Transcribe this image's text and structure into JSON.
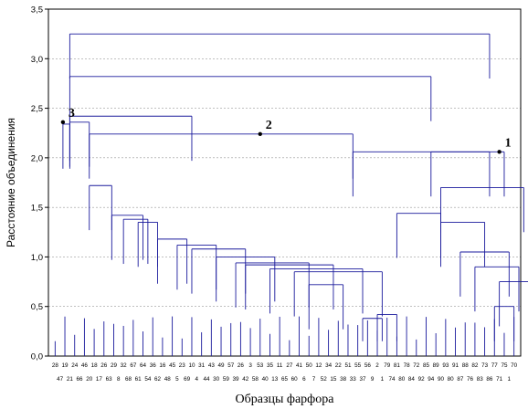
{
  "chart_data": {
    "type": "dendrogram",
    "xlabel": "Образцы фарфора",
    "ylabel": "Расстояние объединения",
    "ylim": [
      0,
      3.5
    ],
    "yticks": [
      "0,0",
      "0,5",
      "1,0",
      "1,5",
      "2,0",
      "2,5",
      "3,0",
      "3,5"
    ],
    "grid": "horizontal dashed",
    "leaf_labels_top": [
      "28",
      "19",
      "24",
      "46",
      "18",
      "26",
      "29",
      "32",
      "67",
      "64",
      "36",
      "16",
      "45",
      "23",
      "10",
      "31",
      "43",
      "49",
      "57",
      "26",
      "3",
      "53",
      "35",
      "11",
      "27",
      "41",
      "50",
      "12",
      "34",
      "22",
      "51",
      "55",
      "56",
      "2",
      "79",
      "81",
      "78",
      "72",
      "85",
      "89",
      "93",
      "91",
      "88",
      "82",
      "73",
      "77",
      "75",
      "70"
    ],
    "leaf_labels_bottom": [
      "47",
      "21",
      "66",
      "20",
      "17",
      "63",
      "8",
      "68",
      "61",
      "54",
      "62",
      "48",
      "5",
      "69",
      "4",
      "44",
      "30",
      "59",
      "39",
      "42",
      "58",
      "40",
      "13",
      "65",
      "60",
      "6",
      "7",
      "52",
      "15",
      "38",
      "33",
      "37",
      "9",
      "1",
      "74",
      "80",
      "84",
      "92",
      "94",
      "90",
      "80",
      "87",
      "76",
      "83",
      "86",
      "71",
      "1"
    ],
    "annotations": [
      {
        "label": "1",
        "height": 2.06
      },
      {
        "label": "2",
        "height": 2.24
      },
      {
        "label": "3",
        "height": 2.36
      }
    ],
    "merges": [
      {
        "x1": 1.5,
        "x2": 44.5,
        "height": 3.25
      },
      {
        "x1": 1.5,
        "x2": 38.5,
        "height": 2.82
      },
      {
        "x1": 1.5,
        "x2": 14.0,
        "height": 2.42
      },
      {
        "x1": 1.5,
        "x2": 3.5,
        "height": 2.36
      },
      {
        "x1": 0.8,
        "x2": 1.5,
        "height": 2.34
      },
      {
        "x1": 3.5,
        "x2": 30.5,
        "height": 2.24
      },
      {
        "x1": 30.5,
        "x2": 46.0,
        "height": 2.06
      },
      {
        "x1": 38.5,
        "x2": 44.5,
        "height": 2.06
      },
      {
        "x1": 39.5,
        "x2": 48.0,
        "height": 1.7
      },
      {
        "x1": 3.5,
        "x2": 5.8,
        "height": 1.72
      },
      {
        "x1": 5.8,
        "x2": 9.0,
        "height": 1.42
      },
      {
        "x1": 7.0,
        "x2": 9.5,
        "height": 1.38
      },
      {
        "x1": 8.5,
        "x2": 10.5,
        "height": 1.35
      },
      {
        "x1": 10.5,
        "x2": 13.5,
        "height": 1.18
      },
      {
        "x1": 12.5,
        "x2": 16.5,
        "height": 1.12
      },
      {
        "x1": 14.0,
        "x2": 19.5,
        "height": 1.08
      },
      {
        "x1": 16.5,
        "x2": 22.5,
        "height": 1.0
      },
      {
        "x1": 18.5,
        "x2": 26.0,
        "height": 0.94
      },
      {
        "x1": 19.5,
        "x2": 28.5,
        "height": 0.92
      },
      {
        "x1": 22.0,
        "x2": 31.5,
        "height": 0.88
      },
      {
        "x1": 24.5,
        "x2": 33.5,
        "height": 0.85
      },
      {
        "x1": 26.0,
        "x2": 29.5,
        "height": 0.72
      },
      {
        "x1": 35.0,
        "x2": 39.5,
        "height": 1.44
      },
      {
        "x1": 39.5,
        "x2": 44.0,
        "height": 1.35
      },
      {
        "x1": 41.5,
        "x2": 46.5,
        "height": 1.05
      },
      {
        "x1": 43.0,
        "x2": 47.5,
        "height": 0.9
      },
      {
        "x1": 45.5,
        "x2": 48.5,
        "height": 0.75
      },
      {
        "x1": 45.0,
        "x2": 47.0,
        "height": 0.5
      },
      {
        "x1": 33.0,
        "x2": 35.0,
        "height": 0.42
      },
      {
        "x1": 31.5,
        "x2": 33.5,
        "height": 0.38
      }
    ]
  }
}
